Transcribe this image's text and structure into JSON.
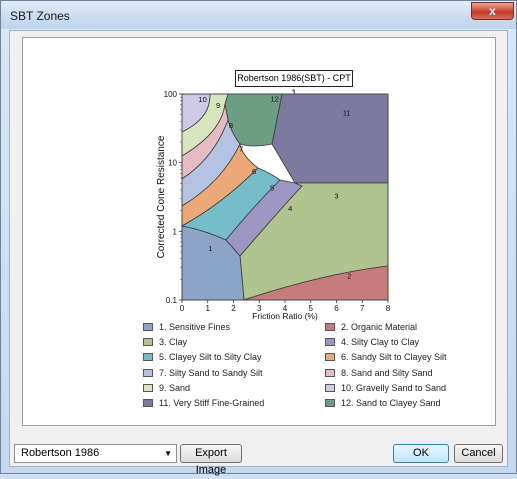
{
  "window": {
    "title": "SBT Zones",
    "close_glyph": "x"
  },
  "chart_title": "Robertson 1986(SBT) - CPT 1",
  "chart_data": {
    "type": "zone-map",
    "title": "Robertson 1986(SBT) - CPT 1",
    "xlabel": "Friction Ratio (%)",
    "ylabel": "Corrected Cone Resistance",
    "x_scale": "linear",
    "y_scale": "log",
    "xlim": [
      0,
      8
    ],
    "ylim": [
      0.1,
      100
    ],
    "x_ticks": [
      "0",
      "1",
      "2",
      "3",
      "4",
      "5",
      "6",
      "7",
      "8"
    ],
    "y_ticks": [
      "0.1",
      "1",
      "10",
      "100"
    ],
    "zones": [
      {
        "id": "1",
        "name": "1. Sensitive Fines",
        "color": "#8ba4c8"
      },
      {
        "id": "2",
        "name": "2. Organic Material",
        "color": "#c77c7c"
      },
      {
        "id": "3",
        "name": "3. Clay",
        "color": "#afc48f"
      },
      {
        "id": "4",
        "name": "4. Silty Clay to Clay",
        "color": "#9d95c2"
      },
      {
        "id": "5",
        "name": "5. Clayey Silt to Silty Clay",
        "color": "#76bcc9"
      },
      {
        "id": "6",
        "name": "6. Sandy Silt to Clayey Silt",
        "color": "#eba979"
      },
      {
        "id": "7",
        "name": "7. Silty Sand to Sandy Silt",
        "color": "#b5c2e2"
      },
      {
        "id": "8",
        "name": "8. Sand and Silty Sand",
        "color": "#e6bcc4"
      },
      {
        "id": "9",
        "name": "9. Sand",
        "color": "#d7e6bf"
      },
      {
        "id": "10",
        "name": "10. Gravelly Sand to Sand",
        "color": "#cdc9e6"
      },
      {
        "id": "11",
        "name": "11. Very Stiff Fine-Grained",
        "color": "#7d7aa0"
      },
      {
        "id": "12",
        "name": "12. Sand to Clayey Sand",
        "color": "#6c9e84"
      }
    ]
  },
  "footer": {
    "dropdown_value": "Robertson 1986",
    "export_label": "Export Image",
    "ok_label": "OK",
    "cancel_label": "Cancel"
  }
}
